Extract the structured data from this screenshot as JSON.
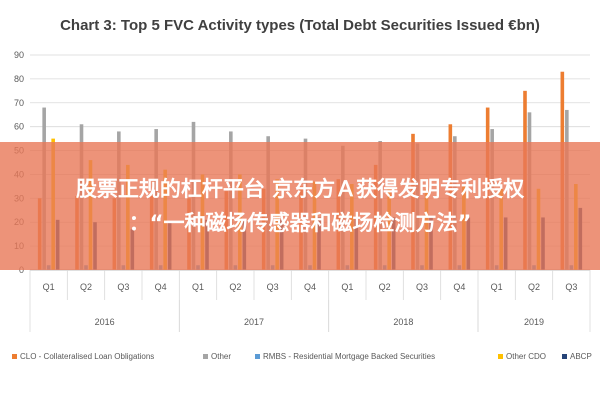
{
  "chart_data": {
    "type": "bar",
    "title": "Chart 3: Top 5 FVC Activity types (Total Debt Securities Issued €bn)",
    "categories": [
      "Q1",
      "Q2",
      "Q3",
      "Q4",
      "Q1",
      "Q2",
      "Q3",
      "Q4",
      "Q1",
      "Q2",
      "Q3",
      "Q4",
      "Q1",
      "Q2",
      "Q3"
    ],
    "years": [
      {
        "label": "2016",
        "start": 0,
        "end": 3
      },
      {
        "label": "2017",
        "start": 4,
        "end": 7
      },
      {
        "label": "2018",
        "start": 8,
        "end": 11
      },
      {
        "label": "2019",
        "start": 12,
        "end": 14
      }
    ],
    "ylim": [
      0,
      90
    ],
    "yticks": [
      0,
      10,
      20,
      30,
      40,
      50,
      60,
      70,
      80,
      90
    ],
    "grid": true,
    "legend_position": "bottom",
    "series": [
      {
        "name": "CLO - Collateralised Loan Obligations",
        "color": "#ED7D31",
        "values": [
          30,
          31,
          30,
          31,
          30,
          33,
          34,
          35,
          38,
          44,
          57,
          61,
          68,
          75,
          83
        ]
      },
      {
        "name": "Other",
        "color": "#A5A5A5",
        "values": [
          68,
          61,
          58,
          59,
          62,
          58,
          56,
          55,
          52,
          54,
          53,
          56,
          59,
          66,
          67
        ]
      },
      {
        "name": "RMBS - Residential Mortgage Backed Securities",
        "color": "#5B9BD5",
        "values": [
          2,
          2,
          2,
          2,
          2,
          2,
          2,
          2,
          2,
          2,
          2,
          2,
          2,
          2,
          2
        ]
      },
      {
        "name": "Other CDO",
        "color": "#FFC000",
        "values": [
          55,
          46,
          44,
          42,
          40,
          40,
          38,
          37,
          36,
          34,
          34,
          35,
          34,
          34,
          36
        ]
      },
      {
        "name": "ABCP",
        "color": "#264478",
        "values": [
          21,
          20,
          17,
          20,
          21,
          21,
          21,
          22,
          22,
          22,
          22,
          22,
          22,
          22,
          26
        ]
      }
    ]
  },
  "overlay": {
    "line1": "股票正规的杠杆平台 京东方Ａ获得发明专利授权",
    "line2": "：“一种磁场传感器和磁场检测方法”"
  }
}
